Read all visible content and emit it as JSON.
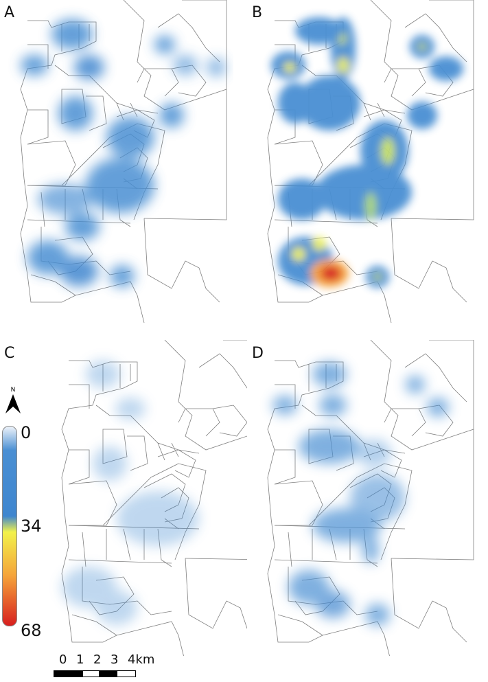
{
  "panels": [
    "A",
    "B",
    "C",
    "D"
  ],
  "legend": {
    "ticks": [
      "0",
      "34",
      "68"
    ],
    "colors": {
      "low": "#4a8fd3",
      "mid": "#f2f24a",
      "high": "#d71f1f"
    }
  },
  "north_arrow": {
    "label": "N",
    "icon": "north-arrow-icon"
  },
  "scale_bar": {
    "labels": [
      "0",
      "1",
      "2",
      "3",
      "4km"
    ]
  }
}
